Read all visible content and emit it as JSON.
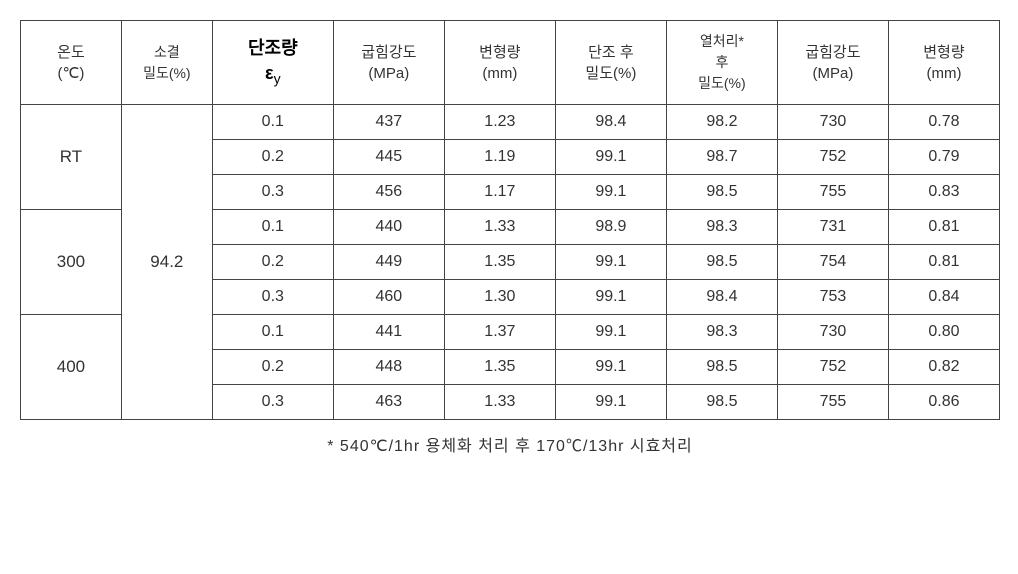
{
  "table": {
    "headers": {
      "temp": {
        "line1": "온도",
        "line2": "(℃)"
      },
      "sinter_density": {
        "line1": "소결",
        "line2": "밀도(%)"
      },
      "forging_amount": {
        "line1": "단조량",
        "line2_symbol": "ε",
        "line2_sub": "y"
      },
      "bending_strength_1": {
        "line1": "굽힘강도",
        "line2": "(MPa)"
      },
      "deformation_1": {
        "line1": "변형량",
        "line2": "(mm)"
      },
      "after_forging_density": {
        "line1": "단조 후",
        "line2": "밀도(%)"
      },
      "after_heat_density": {
        "line1": "열처리*",
        "line2": "후",
        "line3": "밀도(%)"
      },
      "bending_strength_2": {
        "line1": "굽힘강도",
        "line2": "(MPa)"
      },
      "deformation_2": {
        "line1": "변형량",
        "line2": "(mm)"
      }
    },
    "groups": [
      {
        "temp": "RT",
        "rows": [
          {
            "forging": "0.1",
            "bend1": "437",
            "def1": "1.23",
            "den_after": "98.4",
            "den_heat": "98.2",
            "bend2": "730",
            "def2": "0.78"
          },
          {
            "forging": "0.2",
            "bend1": "445",
            "def1": "1.19",
            "den_after": "99.1",
            "den_heat": "98.7",
            "bend2": "752",
            "def2": "0.79"
          },
          {
            "forging": "0.3",
            "bend1": "456",
            "def1": "1.17",
            "den_after": "99.1",
            "den_heat": "98.5",
            "bend2": "755",
            "def2": "0.83"
          }
        ]
      },
      {
        "temp": "300",
        "rows": [
          {
            "forging": "0.1",
            "bend1": "440",
            "def1": "1.33",
            "den_after": "98.9",
            "den_heat": "98.3",
            "bend2": "731",
            "def2": "0.81"
          },
          {
            "forging": "0.2",
            "bend1": "449",
            "def1": "1.35",
            "den_after": "99.1",
            "den_heat": "98.5",
            "bend2": "754",
            "def2": "0.81"
          },
          {
            "forging": "0.3",
            "bend1": "460",
            "def1": "1.30",
            "den_after": "99.1",
            "den_heat": "98.4",
            "bend2": "753",
            "def2": "0.84"
          }
        ]
      },
      {
        "temp": "400",
        "rows": [
          {
            "forging": "0.1",
            "bend1": "441",
            "def1": "1.37",
            "den_after": "99.1",
            "den_heat": "98.3",
            "bend2": "730",
            "def2": "0.80"
          },
          {
            "forging": "0.2",
            "bend1": "448",
            "def1": "1.35",
            "den_after": "99.1",
            "den_heat": "98.5",
            "bend2": "752",
            "def2": "0.82"
          },
          {
            "forging": "0.3",
            "bend1": "463",
            "def1": "1.33",
            "den_after": "99.1",
            "den_heat": "98.5",
            "bend2": "755",
            "def2": "0.86"
          }
        ]
      }
    ],
    "sinter_density_value": "94.2",
    "footnote": "* 540℃/1hr 용체화 처리 후 170℃/13hr 시효처리"
  },
  "styling": {
    "border_color": "#444444",
    "text_color": "#333333",
    "background_color": "#ffffff",
    "font_family": "Malgun Gothic",
    "header_fontsize": 15,
    "data_fontsize": 16,
    "footnote_fontsize": 16
  }
}
